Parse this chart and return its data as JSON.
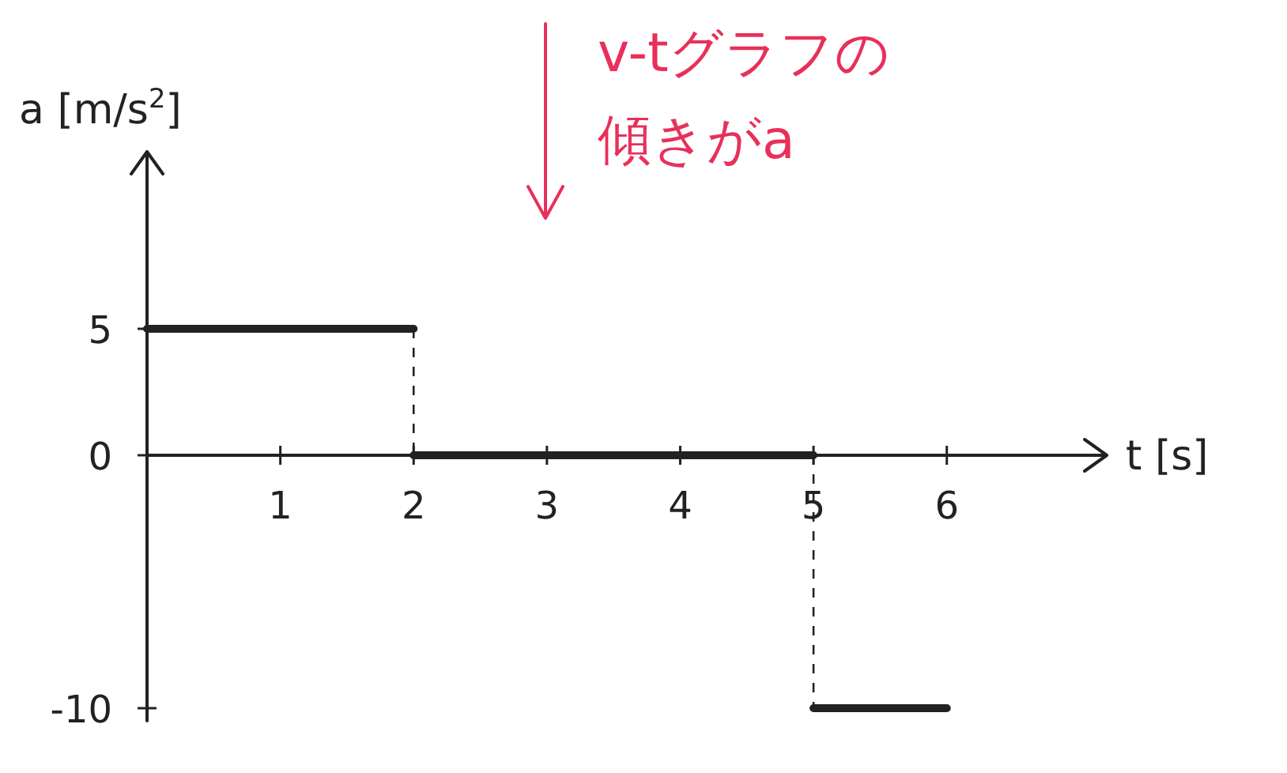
{
  "chart_data": {
    "type": "step",
    "xlabel": "t [s]",
    "ylabel": "a [m/s$^{2}$]",
    "annotations": [
      "v-tグラフの傾きがa"
    ],
    "xlim": [
      0,
      7.2
    ],
    "ylim": [
      -10.5,
      12
    ],
    "xticks": [
      1,
      2,
      3,
      4,
      5,
      6
    ],
    "yticks": [
      -10,
      0,
      5
    ],
    "x": [
      0,
      2,
      5,
      6
    ],
    "series": [
      {
        "color": "#222222",
        "values": [
          5,
          0,
          -10,
          -10
        ]
      }
    ]
  }
}
